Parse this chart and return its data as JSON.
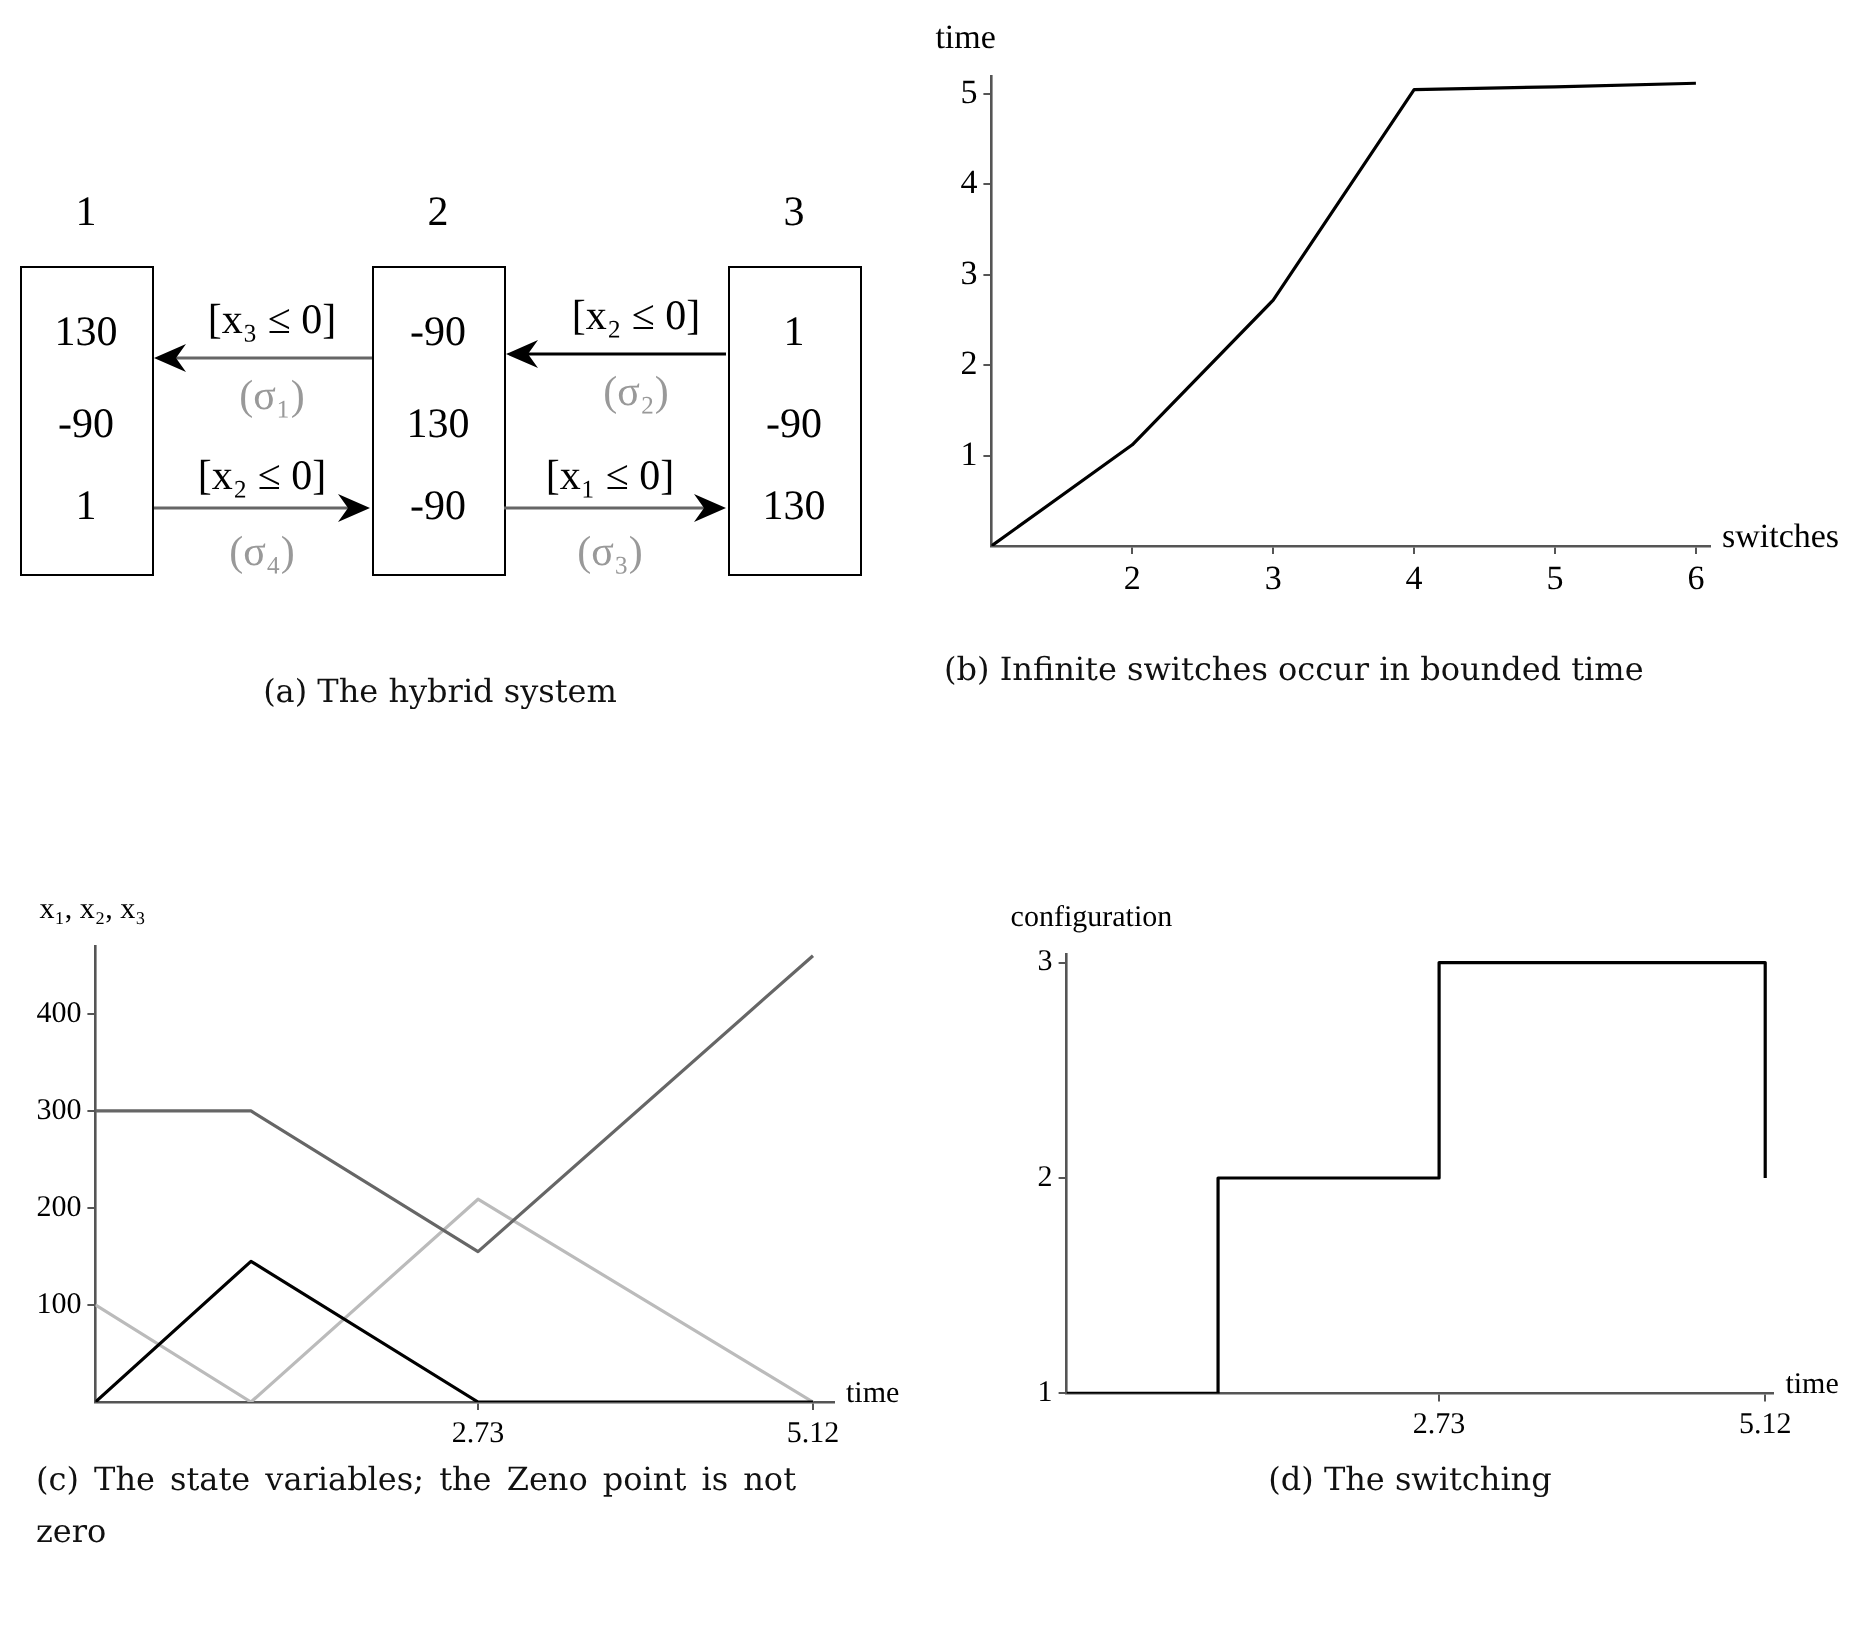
{
  "chart_data": [
    {
      "type": "other",
      "title": "(a) The hybrid system",
      "annotations": [
        "1",
        "2",
        "3",
        "130",
        "-90",
        "1",
        "-90",
        "130",
        "-90",
        "1",
        "-90",
        "130",
        "[x₃ ≤ 0]",
        "(σ₁)",
        "[x₂ ≤ 0]",
        "(σ₂)",
        "[x₂ ≤ 0]",
        "(σ₄)",
        "[x₁ ≤ 0]",
        "(σ₃)"
      ]
    },
    {
      "type": "line",
      "title": "(b) Infinite switches occur in bounded time",
      "xlabel": "switches",
      "ylabel": "time",
      "x": [
        1,
        2,
        3,
        4,
        5,
        6
      ],
      "values": [
        0,
        1.12,
        2.72,
        5.05,
        5.08,
        5.12
      ],
      "color": "#000000",
      "xlim": [
        1,
        6.1
      ],
      "xticks": [
        2,
        3,
        4,
        5,
        6
      ],
      "ylim": [
        0,
        5.2
      ],
      "yticks": [
        1,
        2,
        3,
        4,
        5
      ]
    },
    {
      "type": "line",
      "title": "(c) The state variables; the Zeno point is not zero",
      "xlabel": "time",
      "ylabel": "x₁, x₂, x₃",
      "x": [
        0,
        1.11,
        2.73,
        5.12
      ],
      "series": [
        {
          "color": "#000000",
          "values": [
            0,
            145,
            0,
            0
          ]
        },
        {
          "color": "#666666",
          "values": [
            300,
            300,
            155,
            460
          ]
        },
        {
          "color": "#bbbbbb",
          "values": [
            100,
            0,
            209,
            0
          ]
        }
      ],
      "xlim": [
        0,
        5.27
      ],
      "xticks": [
        2.73,
        5.12
      ],
      "ylim": [
        0,
        470
      ],
      "yticks": [
        100,
        200,
        300,
        400
      ]
    },
    {
      "type": "step",
      "title": "(d) The switching",
      "xlabel": "time",
      "ylabel": "configuration",
      "x": [
        0,
        1.11,
        2.73,
        5.12
      ],
      "values": [
        1,
        2,
        3,
        2
      ],
      "color": "#000000",
      "xlim": [
        0,
        5.18
      ],
      "xticks": [
        2.73,
        5.12
      ],
      "ylim": [
        1,
        3.04
      ],
      "yticks": [
        1,
        2,
        3
      ]
    }
  ]
}
